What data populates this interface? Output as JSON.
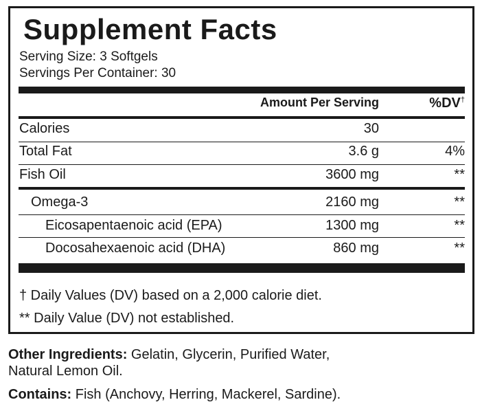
{
  "title": "Supplement Facts",
  "serving_size": "Serving Size: 3 Softgels",
  "servings_per_container": "Servings Per Container: 30",
  "header": {
    "amount": "Amount Per Serving",
    "dv": "%DV",
    "dv_mark": "†"
  },
  "rows": [
    {
      "label": "Calories",
      "amount": "30",
      "dv": ""
    },
    {
      "label": "Total Fat",
      "amount": "3.6 g",
      "dv": "4%"
    },
    {
      "label": "Fish Oil",
      "amount": "3600 mg",
      "dv": "**"
    },
    {
      "label": "Omega-3",
      "amount": "2160 mg",
      "dv": "**"
    },
    {
      "label": "Eicosapentaenoic acid (EPA)",
      "amount": "1300 mg",
      "dv": "**"
    },
    {
      "label": "Docosahexaenoic acid (DHA)",
      "amount": "860 mg",
      "dv": "**"
    }
  ],
  "footnotes": [
    "† Daily Values (DV) based on a 2,000 calorie diet.",
    "** Daily Value (DV) not established."
  ],
  "other_ingredients": {
    "label": "Other Ingredients:",
    "text_line1": " Gelatin, Glycerin, Purified Water,",
    "text_line2": "Natural Lemon Oil."
  },
  "contains": {
    "label": "Contains:",
    "text": " Fish (Anchovy, Herring, Mackerel, Sardine)."
  }
}
